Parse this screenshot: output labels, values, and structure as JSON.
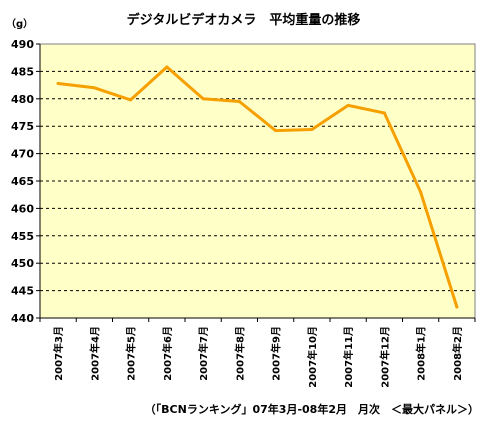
{
  "chart_data": {
    "type": "line",
    "title": "デジタルビデオカメラ　平均重量の推移",
    "ylabel": "（g）",
    "source": "（「BCNランキング」07年3月-08年2月　月次　＜最大パネル＞）",
    "categories": [
      "2007年3月",
      "2007年4月",
      "2007年5月",
      "2007年6月",
      "2007年7月",
      "2007年8月",
      "2007年9月",
      "2007年10月",
      "2007年11月",
      "2007年12月",
      "2008年1月",
      "2008年2月"
    ],
    "series": [
      {
        "values": [
          482.8,
          482.0,
          479.8,
          485.8,
          480.0,
          479.5,
          474.2,
          474.4,
          478.8,
          477.4,
          463.0,
          442.0
        ]
      }
    ],
    "ylim": [
      440,
      490
    ],
    "yticks": [
      440,
      445,
      450,
      455,
      460,
      465,
      470,
      475,
      480,
      485,
      490
    ],
    "grid": true,
    "legend": "none",
    "colors": {
      "line": "#F5A000",
      "plot_bg": "#FFFFC8",
      "grid": "#000000"
    }
  }
}
